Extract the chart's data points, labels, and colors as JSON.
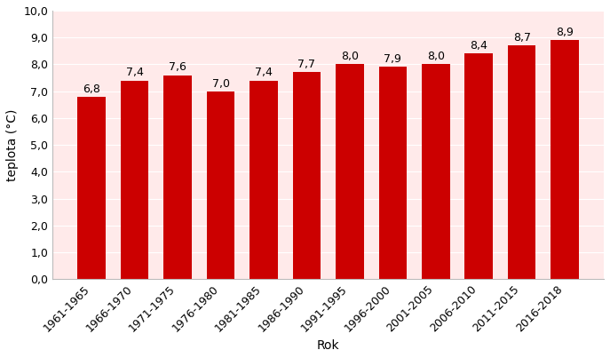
{
  "categories": [
    "1961-1965",
    "1966-1970",
    "1971-1975",
    "1976-1980",
    "1981-1985",
    "1986-1990",
    "1991-1995",
    "1996-2000",
    "2001-2005",
    "2006-2010",
    "2011-2015",
    "2016-2018"
  ],
  "values": [
    6.8,
    7.4,
    7.6,
    7.0,
    7.4,
    7.7,
    8.0,
    7.9,
    8.0,
    8.4,
    8.7,
    8.9
  ],
  "bar_color": "#CC0000",
  "ylabel": "teplota (°C)",
  "xlabel": "Rok",
  "ylim": [
    0.0,
    10.0
  ],
  "yticks": [
    0.0,
    1.0,
    2.0,
    3.0,
    4.0,
    5.0,
    6.0,
    7.0,
    8.0,
    9.0,
    10.0
  ],
  "ytick_labels": [
    "0,0",
    "1,0",
    "2,0",
    "3,0",
    "4,0",
    "5,0",
    "6,0",
    "7,0",
    "8,0",
    "9,0",
    "10,0"
  ],
  "label_fontsize": 9,
  "axis_label_fontsize": 10,
  "tick_fontsize": 9,
  "bar_width": 0.65,
  "background_color": "#FFEAEA",
  "figure_bg": "#FFFFFF",
  "grid_color": "#FFFFFF",
  "spine_color": "#BBBBBB"
}
